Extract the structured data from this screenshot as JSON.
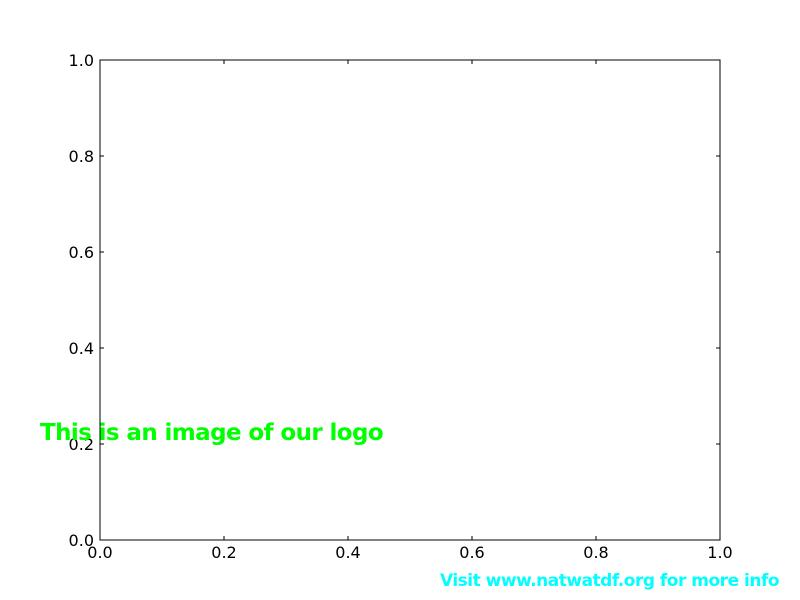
{
  "chart_data": {
    "type": "scatter",
    "title": "",
    "xlabel": "",
    "ylabel": "",
    "xlim": [
      0.0,
      1.0
    ],
    "ylim": [
      0.0,
      1.0
    ],
    "x_ticks": [
      "0.0",
      "0.2",
      "0.4",
      "0.6",
      "0.8",
      "1.0"
    ],
    "y_ticks": [
      "0.0",
      "0.2",
      "0.4",
      "0.6",
      "0.8",
      "1.0"
    ],
    "grid": false,
    "series": [],
    "annotations": [
      {
        "text": "This is an image of our logo",
        "color": "#00ff00"
      },
      {
        "text": "Visit www.natwatdf.org for more info",
        "color": "#00ffff"
      }
    ]
  }
}
